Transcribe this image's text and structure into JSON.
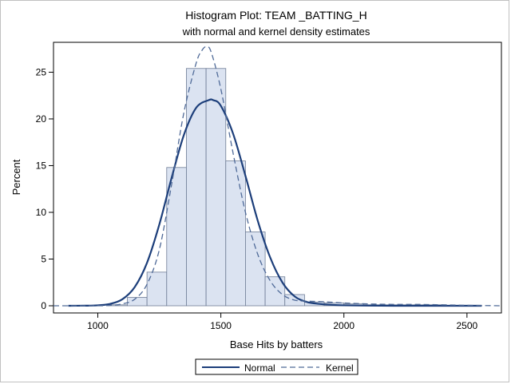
{
  "chart_data": {
    "type": "bar",
    "title": "Histogram Plot: TEAM _BATTING_H",
    "subtitle": "with normal and kernel density estimates",
    "xlabel": "Base Hits by batters",
    "ylabel": "Percent",
    "xlim": [
      820,
      2640
    ],
    "ylim": [
      0,
      28.2
    ],
    "x_ticks": [
      1000,
      1500,
      2000,
      2500
    ],
    "y_ticks": [
      0,
      5,
      10,
      15,
      20,
      25
    ],
    "bin_width": 80,
    "bins": [
      {
        "x0": 1040,
        "x1": 1120,
        "value": 0.1
      },
      {
        "x0": 1120,
        "x1": 1200,
        "value": 0.9
      },
      {
        "x0": 1200,
        "x1": 1280,
        "value": 3.6
      },
      {
        "x0": 1280,
        "x1": 1360,
        "value": 14.8
      },
      {
        "x0": 1360,
        "x1": 1440,
        "value": 25.4
      },
      {
        "x0": 1440,
        "x1": 1520,
        "value": 25.4
      },
      {
        "x0": 1520,
        "x1": 1600,
        "value": 15.5
      },
      {
        "x0": 1600,
        "x1": 1680,
        "value": 7.9
      },
      {
        "x0": 1680,
        "x1": 1760,
        "value": 3.1
      },
      {
        "x0": 1760,
        "x1": 1840,
        "value": 1.2
      },
      {
        "x0": 1840,
        "x1": 1920,
        "value": 0.4
      },
      {
        "x0": 1920,
        "x1": 2000,
        "value": 0.3
      },
      {
        "x0": 2000,
        "x1": 2080,
        "value": 0.2
      },
      {
        "x0": 2080,
        "x1": 2160,
        "value": 0.1
      },
      {
        "x0": 2160,
        "x1": 2240,
        "value": 0.1
      },
      {
        "x0": 2240,
        "x1": 2320,
        "value": 0.1
      },
      {
        "x0": 2320,
        "x1": 2400,
        "value": 0.1
      },
      {
        "x0": 2400,
        "x1": 2480,
        "value": 0.05
      },
      {
        "x0": 2480,
        "x1": 2560,
        "value": 0.05
      }
    ],
    "series": [
      {
        "name": "Normal",
        "style": "solid",
        "x": [
          880,
          950,
          1000,
          1050,
          1100,
          1150,
          1200,
          1250,
          1300,
          1350,
          1400,
          1450,
          1470,
          1500,
          1550,
          1600,
          1650,
          1700,
          1750,
          1800,
          1850,
          1900,
          1950,
          2000,
          2100,
          2200,
          2300,
          2400,
          2560
        ],
        "values": [
          0.0,
          0.01,
          0.05,
          0.2,
          0.7,
          2.0,
          4.6,
          8.7,
          13.7,
          18.3,
          21.2,
          22.0,
          22.0,
          21.4,
          18.4,
          13.9,
          9.1,
          5.2,
          2.5,
          1.0,
          0.4,
          0.2,
          0.1,
          0.05,
          0.02,
          0.0,
          0.0,
          0.0,
          0.0
        ]
      },
      {
        "name": "Kernel",
        "style": "dashed",
        "x": [
          820,
          1000,
          1050,
          1100,
          1150,
          1200,
          1250,
          1300,
          1350,
          1400,
          1425,
          1440,
          1460,
          1500,
          1550,
          1600,
          1650,
          1700,
          1750,
          1800,
          1850,
          1900,
          2000,
          2100,
          2200,
          2300,
          2400,
          2500,
          2640
        ],
        "values": [
          0.0,
          0.0,
          0.05,
          0.2,
          0.7,
          2.3,
          6.0,
          13.0,
          20.7,
          26.0,
          27.4,
          27.7,
          27.2,
          23.2,
          16.3,
          10.0,
          5.5,
          2.7,
          1.2,
          0.6,
          0.5,
          0.45,
          0.3,
          0.2,
          0.15,
          0.15,
          0.1,
          0.05,
          0.0
        ]
      }
    ],
    "legend": {
      "position": "bottom-center",
      "entries": [
        "Normal",
        "Kernel"
      ]
    },
    "colors": {
      "bar_fill": "#dbe3f1",
      "bar_edge": "#6e7c95",
      "normal": "#1c3e7a",
      "kernel": "#4f6a98"
    }
  }
}
